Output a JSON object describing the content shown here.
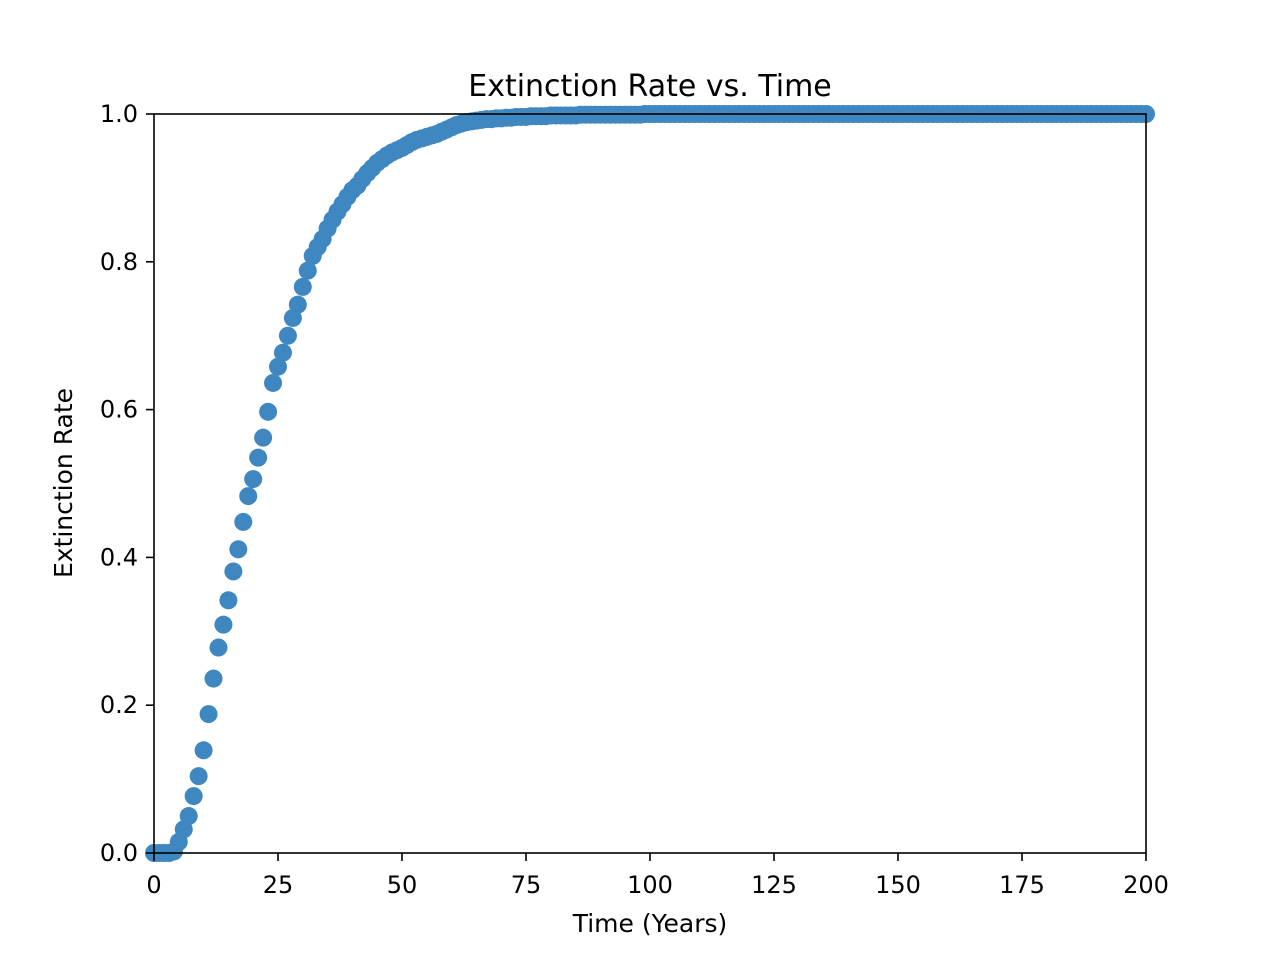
{
  "chart_data": {
    "type": "scatter",
    "title": "Extinction Rate vs. Time",
    "xlabel": "Time (Years)",
    "ylabel": "Extinction Rate",
    "xlim": [
      0,
      200
    ],
    "ylim": [
      0,
      1.0
    ],
    "x_ticks": [
      "0",
      "25",
      "50",
      "75",
      "100",
      "125",
      "150",
      "175",
      "200"
    ],
    "y_ticks": [
      "0.0",
      "0.2",
      "0.4",
      "0.6",
      "0.8",
      "1.0"
    ],
    "grid": false,
    "legend": "none",
    "marker_color": "#3f87c0",
    "series": [
      {
        "x": [
          0,
          1,
          2,
          3,
          4,
          5,
          6,
          7,
          8,
          9,
          10,
          11,
          12,
          13,
          14,
          15,
          16,
          17,
          18,
          19,
          20,
          21,
          22,
          23,
          24,
          25,
          26,
          27,
          28,
          29,
          30,
          31,
          32,
          33,
          34,
          35,
          36,
          37,
          38,
          39,
          40,
          41,
          42,
          43,
          44,
          45,
          46,
          47,
          48,
          49,
          50,
          51,
          52,
          53,
          54,
          55,
          56,
          57,
          58,
          59,
          60,
          61,
          62,
          63,
          64,
          65,
          66,
          67,
          68,
          69,
          70,
          71,
          72,
          73,
          74,
          75,
          76,
          77,
          78,
          79,
          80,
          81,
          82,
          83,
          84,
          85,
          86,
          87,
          88,
          89,
          90,
          91,
          92,
          93,
          94,
          95,
          96,
          97,
          98,
          99,
          100,
          101,
          102,
          103,
          104,
          105,
          106,
          107,
          108,
          109,
          110,
          111,
          112,
          113,
          114,
          115,
          116,
          117,
          118,
          119,
          120,
          121,
          122,
          123,
          124,
          125,
          126,
          127,
          128,
          129,
          130,
          131,
          132,
          133,
          134,
          135,
          136,
          137,
          138,
          139,
          140,
          141,
          142,
          143,
          144,
          145,
          146,
          147,
          148,
          149,
          150,
          151,
          152,
          153,
          154,
          155,
          156,
          157,
          158,
          159,
          160,
          161,
          162,
          163,
          164,
          165,
          166,
          167,
          168,
          169,
          170,
          171,
          172,
          173,
          174,
          175,
          176,
          177,
          178,
          179,
          180,
          181,
          182,
          183,
          184,
          185,
          186,
          187,
          188,
          189,
          190,
          191,
          192,
          193,
          194,
          195,
          196,
          197,
          198,
          199,
          200
        ],
        "y": [
          0.0,
          0.0,
          0.0,
          0.0,
          0.002,
          0.015,
          0.032,
          0.05,
          0.077,
          0.104,
          0.139,
          0.188,
          0.236,
          0.278,
          0.309,
          0.342,
          0.381,
          0.411,
          0.448,
          0.483,
          0.506,
          0.535,
          0.562,
          0.597,
          0.636,
          0.658,
          0.677,
          0.7,
          0.724,
          0.742,
          0.766,
          0.788,
          0.808,
          0.82,
          0.831,
          0.845,
          0.857,
          0.868,
          0.878,
          0.888,
          0.897,
          0.903,
          0.912,
          0.92,
          0.927,
          0.934,
          0.939,
          0.944,
          0.948,
          0.951,
          0.954,
          0.958,
          0.962,
          0.965,
          0.967,
          0.969,
          0.971,
          0.973,
          0.976,
          0.979,
          0.982,
          0.985,
          0.987,
          0.989,
          0.99,
          0.991,
          0.992,
          0.993,
          0.993,
          0.994,
          0.994,
          0.995,
          0.995,
          0.996,
          0.996,
          0.996,
          0.997,
          0.997,
          0.997,
          0.997,
          0.998,
          0.998,
          0.998,
          0.998,
          0.998,
          0.998,
          0.999,
          0.999,
          0.999,
          0.999,
          0.999,
          0.999,
          0.999,
          0.999,
          0.999,
          0.999,
          0.999,
          0.999,
          0.999,
          1.0,
          1.0,
          1.0,
          1.0,
          1.0,
          1.0,
          1.0,
          1.0,
          1.0,
          1.0,
          1.0,
          1.0,
          1.0,
          1.0,
          1.0,
          1.0,
          1.0,
          1.0,
          1.0,
          1.0,
          1.0,
          1.0,
          1.0,
          1.0,
          1.0,
          1.0,
          1.0,
          1.0,
          1.0,
          1.0,
          1.0,
          1.0,
          1.0,
          1.0,
          1.0,
          1.0,
          1.0,
          1.0,
          1.0,
          1.0,
          1.0,
          1.0,
          1.0,
          1.0,
          1.0,
          1.0,
          1.0,
          1.0,
          1.0,
          1.0,
          1.0,
          1.0,
          1.0,
          1.0,
          1.0,
          1.0,
          1.0,
          1.0,
          1.0,
          1.0,
          1.0,
          1.0,
          1.0,
          1.0,
          1.0,
          1.0,
          1.0,
          1.0,
          1.0,
          1.0,
          1.0,
          1.0,
          1.0,
          1.0,
          1.0,
          1.0,
          1.0,
          1.0,
          1.0,
          1.0,
          1.0,
          1.0,
          1.0,
          1.0,
          1.0,
          1.0,
          1.0,
          1.0,
          1.0,
          1.0,
          1.0,
          1.0,
          1.0,
          1.0,
          1.0,
          1.0,
          1.0,
          1.0,
          1.0,
          1.0,
          1.0,
          1.0
        ]
      }
    ]
  }
}
